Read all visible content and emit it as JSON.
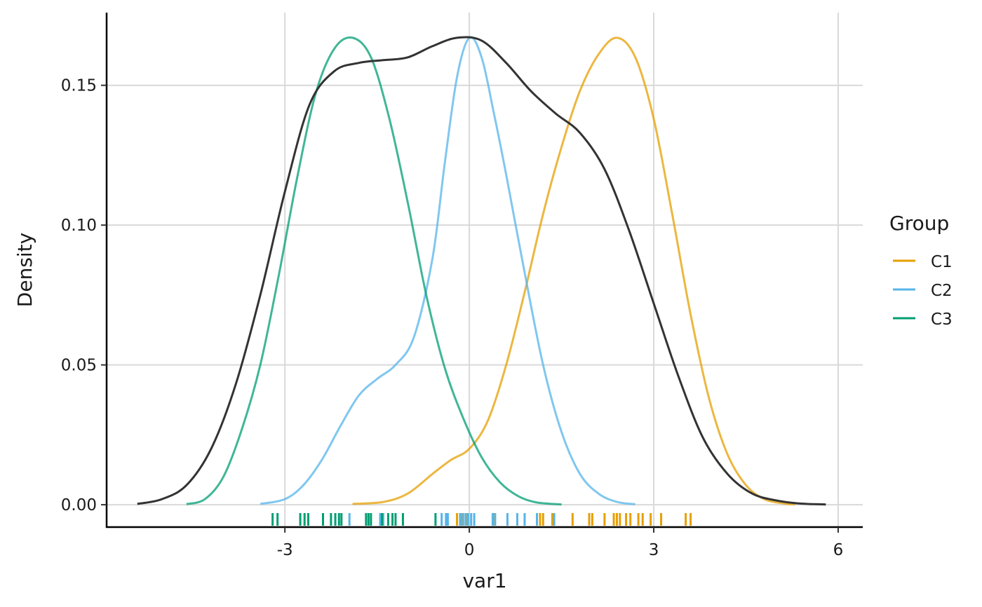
{
  "chart_data": {
    "type": "line",
    "title": "",
    "xlabel": "var1",
    "ylabel": "Density",
    "xlim": [
      -5.9,
      6.4
    ],
    "ylim": [
      -0.008,
      0.176
    ],
    "x_ticks": [
      -3,
      0,
      3,
      6
    ],
    "x_tick_labels": [
      "-3",
      "0",
      "3",
      "6"
    ],
    "y_ticks": [
      0,
      0.05,
      0.1,
      0.15
    ],
    "y_tick_labels": [
      "0.00",
      "0.05",
      "0.10",
      "0.15"
    ],
    "grid": true,
    "legend": {
      "title": "Group",
      "position": "right",
      "entries": [
        {
          "name": "C1",
          "color": "#E69F00"
        },
        {
          "name": "C2",
          "color": "#56B4E9"
        },
        {
          "name": "C3",
          "color": "#009E73"
        }
      ]
    },
    "series": [
      {
        "name": "C1",
        "color": "#E69F00",
        "x": [
          -1.9,
          -1.4,
          -1.0,
          -0.6,
          -0.3,
          0.0,
          0.3,
          0.6,
          0.9,
          1.2,
          1.5,
          1.8,
          2.1,
          2.4,
          2.7,
          3.0,
          3.3,
          3.6,
          3.9,
          4.2,
          4.5,
          4.8,
          5.1,
          5.3
        ],
        "y": [
          0.0003,
          0.001,
          0.004,
          0.011,
          0.016,
          0.02,
          0.03,
          0.05,
          0.076,
          0.104,
          0.128,
          0.148,
          0.161,
          0.167,
          0.16,
          0.138,
          0.104,
          0.068,
          0.038,
          0.018,
          0.007,
          0.002,
          0.0005,
          0.0001
        ]
      },
      {
        "name": "C2",
        "color": "#56B4E9",
        "x": [
          -3.4,
          -3.0,
          -2.7,
          -2.4,
          -2.1,
          -1.8,
          -1.5,
          -1.2,
          -0.9,
          -0.6,
          -0.4,
          -0.2,
          0.0,
          0.2,
          0.4,
          0.6,
          0.9,
          1.2,
          1.5,
          1.8,
          2.1,
          2.4,
          2.7
        ],
        "y": [
          0.0003,
          0.002,
          0.007,
          0.016,
          0.028,
          0.039,
          0.045,
          0.05,
          0.06,
          0.088,
          0.122,
          0.153,
          0.167,
          0.16,
          0.14,
          0.118,
          0.083,
          0.05,
          0.026,
          0.011,
          0.004,
          0.001,
          0.0002
        ]
      },
      {
        "name": "C3",
        "color": "#009E73",
        "x": [
          -4.6,
          -4.3,
          -4.0,
          -3.7,
          -3.4,
          -3.1,
          -2.8,
          -2.5,
          -2.2,
          -1.9,
          -1.6,
          -1.3,
          -1.0,
          -0.7,
          -0.4,
          -0.1,
          0.2,
          0.5,
          0.8,
          1.1,
          1.5
        ],
        "y": [
          0.0002,
          0.002,
          0.01,
          0.027,
          0.05,
          0.082,
          0.117,
          0.147,
          0.163,
          0.167,
          0.16,
          0.138,
          0.108,
          0.075,
          0.049,
          0.031,
          0.017,
          0.008,
          0.003,
          0.0008,
          0.0001
        ]
      },
      {
        "name": "",
        "color": "#333333",
        "x": [
          -5.4,
          -5.0,
          -4.6,
          -4.2,
          -3.8,
          -3.4,
          -3.0,
          -2.6,
          -2.2,
          -1.8,
          -1.4,
          -1.0,
          -0.6,
          -0.2,
          0.2,
          0.6,
          1.0,
          1.4,
          1.8,
          2.2,
          2.6,
          3.0,
          3.4,
          3.8,
          4.2,
          4.6,
          5.0,
          5.4,
          5.8
        ],
        "y": [
          0.0003,
          0.002,
          0.007,
          0.02,
          0.043,
          0.075,
          0.112,
          0.143,
          0.155,
          0.158,
          0.159,
          0.16,
          0.164,
          0.167,
          0.166,
          0.158,
          0.148,
          0.14,
          0.133,
          0.12,
          0.098,
          0.072,
          0.046,
          0.024,
          0.011,
          0.004,
          0.0015,
          0.0004,
          0.0001
        ]
      }
    ],
    "rug": [
      {
        "group": "C1",
        "color": "#E69F00",
        "x": [
          -0.2,
          -0.12,
          -0.05,
          0.4,
          1.15,
          1.2,
          1.35,
          1.68,
          1.95,
          2.0,
          2.2,
          2.35,
          2.4,
          2.45,
          2.55,
          2.62,
          2.75,
          2.82,
          2.95,
          3.12,
          3.52,
          3.6
        ]
      },
      {
        "group": "C2",
        "color": "#56B4E9",
        "x": [
          -1.95,
          -1.45,
          -1.4,
          -0.45,
          -0.38,
          -0.35,
          -0.15,
          -0.1,
          -0.06,
          -0.02,
          0.03,
          0.08,
          0.38,
          0.42,
          0.62,
          0.78,
          0.9,
          1.1,
          1.38
        ]
      },
      {
        "group": "C3",
        "color": "#009E73",
        "x": [
          -3.2,
          -3.12,
          -2.75,
          -2.68,
          -2.62,
          -2.38,
          -2.25,
          -2.18,
          -2.12,
          -2.08,
          -1.68,
          -1.64,
          -1.6,
          -1.42,
          -1.32,
          -1.25,
          -1.2,
          -1.08,
          -0.55
        ]
      }
    ]
  }
}
